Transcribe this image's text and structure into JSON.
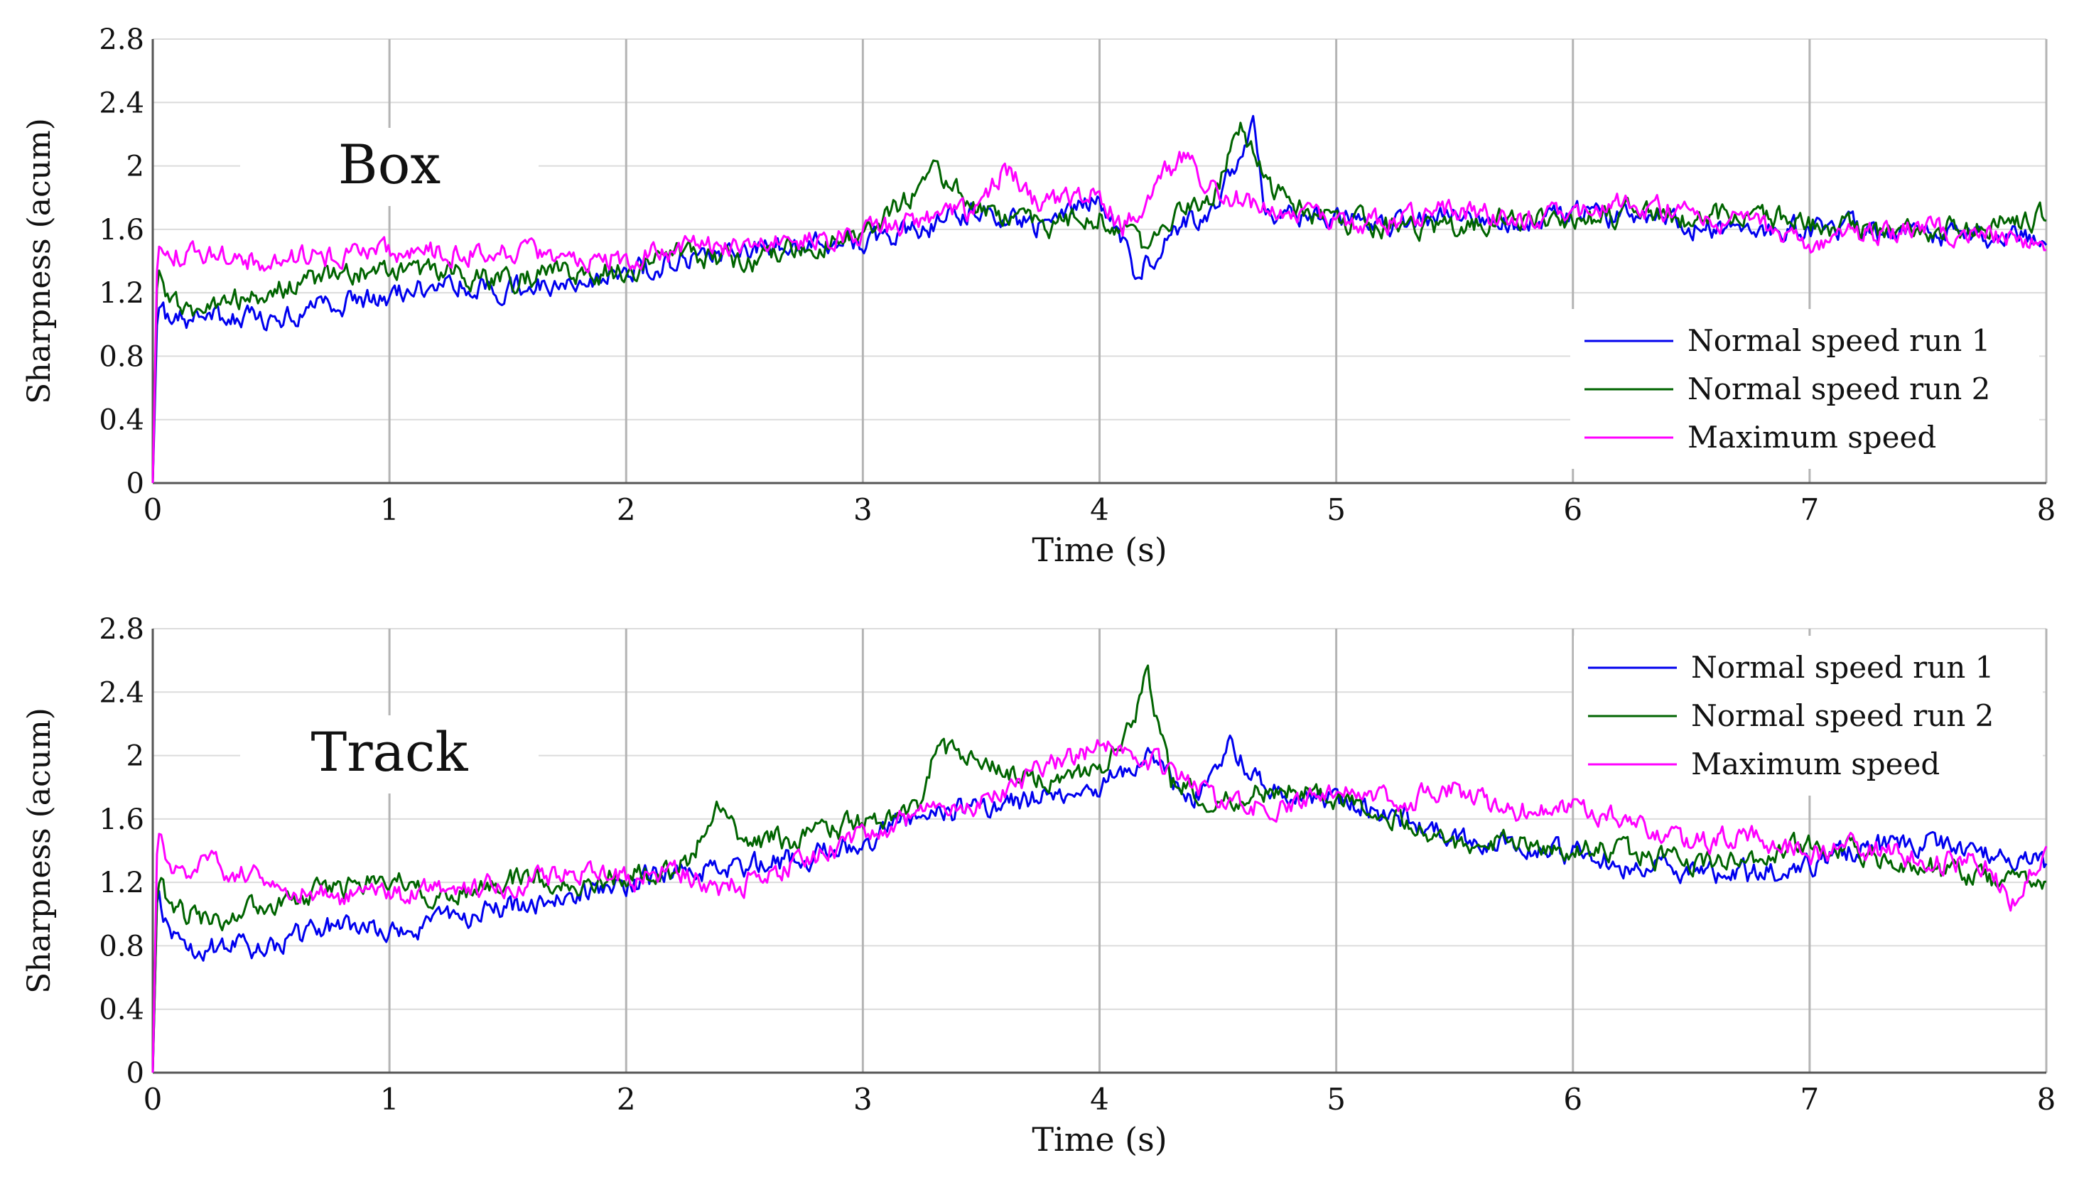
{
  "chart_data": [
    {
      "type": "line",
      "title": "Box",
      "xlabel": "Time (s)",
      "ylabel": "Sharpness (acum)",
      "xlim": [
        0,
        8
      ],
      "ylim": [
        0,
        2.8
      ],
      "xticks": [
        "0",
        "1",
        "2",
        "3",
        "4",
        "5",
        "6",
        "7",
        "8"
      ],
      "yticks": [
        "0",
        "0.4",
        "0.8",
        "1.2",
        "1.6",
        "2",
        "2.4",
        "2.8"
      ],
      "legend_position": "lower-right",
      "series": [
        {
          "name": "Normal speed run 1",
          "color": "#0000ee",
          "x": [
            0,
            0.02,
            0.05,
            0.1,
            0.25,
            0.5,
            0.75,
            1,
            1.25,
            1.5,
            1.75,
            2,
            2.25,
            2.5,
            2.75,
            3,
            3.25,
            3.5,
            3.75,
            3.9,
            4,
            4.1,
            4.15,
            4.2,
            4.3,
            4.5,
            4.65,
            4.7,
            4.8,
            5,
            5.25,
            5.5,
            5.75,
            6,
            6.25,
            6.5,
            6.75,
            7,
            7.25,
            7.5,
            7.75,
            8
          ],
          "y": [
            0,
            1.12,
            1.05,
            1.02,
            1.05,
            1.02,
            1.12,
            1.17,
            1.27,
            1.22,
            1.28,
            1.33,
            1.42,
            1.47,
            1.5,
            1.53,
            1.62,
            1.72,
            1.62,
            1.72,
            1.8,
            1.52,
            1.25,
            1.38,
            1.55,
            1.78,
            2.28,
            1.75,
            1.68,
            1.67,
            1.62,
            1.68,
            1.62,
            1.72,
            1.65,
            1.62,
            1.58,
            1.62,
            1.6,
            1.58,
            1.55,
            1.52
          ]
        },
        {
          "name": "Normal speed run 2",
          "color": "#006400",
          "x": [
            0,
            0.02,
            0.05,
            0.1,
            0.15,
            0.25,
            0.5,
            0.75,
            1,
            1.25,
            1.5,
            1.75,
            2,
            2.25,
            2.5,
            2.75,
            3,
            3.2,
            3.3,
            3.5,
            3.75,
            4,
            4.1,
            4.2,
            4.3,
            4.5,
            4.6,
            4.7,
            4.8,
            5,
            5.25,
            5.5,
            5.75,
            6,
            6.25,
            6.5,
            6.75,
            7,
            7.25,
            7.5,
            7.75,
            8
          ],
          "y": [
            0,
            1.38,
            1.2,
            1.12,
            1.05,
            1.12,
            1.22,
            1.3,
            1.35,
            1.32,
            1.28,
            1.32,
            1.33,
            1.45,
            1.38,
            1.5,
            1.58,
            1.82,
            1.98,
            1.72,
            1.62,
            1.68,
            1.6,
            1.45,
            1.65,
            1.85,
            2.25,
            1.92,
            1.75,
            1.65,
            1.62,
            1.62,
            1.68,
            1.66,
            1.7,
            1.65,
            1.72,
            1.62,
            1.6,
            1.58,
            1.62,
            1.68
          ]
        },
        {
          "name": "Maximum speed",
          "color": "#ff00ff",
          "x": [
            0,
            0.02,
            0.05,
            0.25,
            0.5,
            0.75,
            1,
            1.25,
            1.5,
            1.75,
            2,
            2.25,
            2.5,
            2.75,
            3,
            3.25,
            3.5,
            3.6,
            3.75,
            4,
            4.1,
            4.25,
            4.35,
            4.5,
            4.75,
            5,
            5.25,
            5.5,
            5.75,
            6,
            6.25,
            6.5,
            6.75,
            7,
            7.25,
            7.5,
            7.75,
            8
          ],
          "y": [
            0,
            1.5,
            1.46,
            1.42,
            1.4,
            1.43,
            1.45,
            1.46,
            1.48,
            1.44,
            1.42,
            1.47,
            1.5,
            1.52,
            1.57,
            1.65,
            1.72,
            1.98,
            1.75,
            1.82,
            1.62,
            1.92,
            2.05,
            1.85,
            1.72,
            1.62,
            1.66,
            1.72,
            1.66,
            1.72,
            1.75,
            1.7,
            1.62,
            1.52,
            1.58,
            1.6,
            1.55,
            1.5
          ]
        }
      ]
    },
    {
      "type": "line",
      "title": "Track",
      "xlabel": "Time (s)",
      "ylabel": "Sharpness (acum)",
      "xlim": [
        0,
        8
      ],
      "ylim": [
        0,
        2.8
      ],
      "xticks": [
        "0",
        "1",
        "2",
        "3",
        "4",
        "5",
        "6",
        "7",
        "8"
      ],
      "yticks": [
        "0",
        "0.4",
        "0.8",
        "1.2",
        "1.6",
        "2",
        "2.4",
        "2.8"
      ],
      "legend_position": "top-right",
      "series": [
        {
          "name": "Normal speed run 1",
          "color": "#0000ee",
          "x": [
            0,
            0.02,
            0.05,
            0.1,
            0.2,
            0.5,
            0.75,
            1,
            1.25,
            1.5,
            1.75,
            2,
            2.25,
            2.5,
            2.75,
            3,
            3.25,
            3.5,
            3.75,
            4,
            4.2,
            4.4,
            4.55,
            4.7,
            5,
            5.25,
            5.5,
            5.75,
            6,
            6.25,
            6.5,
            6.75,
            7,
            7.25,
            7.5,
            7.75,
            8
          ],
          "y": [
            0,
            1.2,
            0.95,
            0.82,
            0.78,
            0.8,
            0.92,
            0.9,
            0.95,
            1.05,
            1.12,
            1.2,
            1.28,
            1.3,
            1.35,
            1.45,
            1.62,
            1.68,
            1.72,
            1.82,
            1.98,
            1.72,
            2.05,
            1.78,
            1.72,
            1.62,
            1.52,
            1.42,
            1.38,
            1.3,
            1.28,
            1.25,
            1.32,
            1.42,
            1.45,
            1.38,
            1.3
          ]
        },
        {
          "name": "Normal speed run 2",
          "color": "#006400",
          "x": [
            0,
            0.02,
            0.05,
            0.1,
            0.25,
            0.5,
            0.75,
            1,
            1.25,
            1.5,
            1.75,
            2,
            2.25,
            2.4,
            2.5,
            2.75,
            3,
            3.25,
            3.3,
            3.5,
            3.75,
            4,
            4.15,
            4.2,
            4.3,
            4.5,
            4.75,
            5,
            5.25,
            5.5,
            5.75,
            6,
            6.25,
            6.5,
            6.75,
            7,
            7.25,
            7.5,
            7.75,
            8
          ],
          "y": [
            0,
            1.22,
            1.1,
            1.02,
            0.95,
            1.05,
            1.15,
            1.22,
            1.1,
            1.22,
            1.2,
            1.25,
            1.3,
            1.7,
            1.45,
            1.48,
            1.58,
            1.7,
            2.05,
            1.95,
            1.85,
            1.9,
            2.2,
            2.5,
            1.85,
            1.72,
            1.8,
            1.72,
            1.6,
            1.42,
            1.45,
            1.42,
            1.38,
            1.32,
            1.35,
            1.45,
            1.38,
            1.3,
            1.22,
            1.15
          ]
        },
        {
          "name": "Maximum speed",
          "color": "#ff00ff",
          "x": [
            0,
            0.02,
            0.05,
            0.1,
            0.25,
            0.5,
            0.75,
            1,
            1.25,
            1.5,
            1.75,
            2,
            2.25,
            2.4,
            2.5,
            2.75,
            3,
            3.25,
            3.5,
            3.75,
            4,
            4.25,
            4.5,
            4.75,
            5,
            5.25,
            5.5,
            5.75,
            6,
            6.25,
            6.5,
            6.75,
            7,
            7.25,
            7.5,
            7.75,
            7.85,
            8
          ],
          "y": [
            0,
            1.55,
            1.35,
            1.28,
            1.3,
            1.2,
            1.1,
            1.12,
            1.15,
            1.2,
            1.25,
            1.22,
            1.25,
            1.15,
            1.2,
            1.32,
            1.5,
            1.62,
            1.72,
            1.9,
            2.05,
            1.95,
            1.72,
            1.68,
            1.75,
            1.7,
            1.78,
            1.65,
            1.68,
            1.55,
            1.45,
            1.5,
            1.38,
            1.42,
            1.35,
            1.32,
            1.08,
            1.38
          ]
        }
      ]
    }
  ]
}
